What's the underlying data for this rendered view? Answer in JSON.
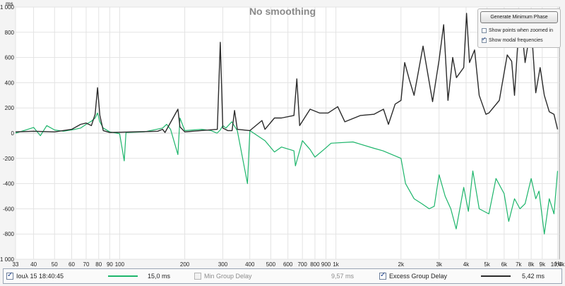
{
  "chart_data": {
    "type": "line",
    "title": "No smoothing",
    "x_unit": "Hz",
    "y_unit": "ms",
    "x_scale": "log",
    "xlim": [
      33,
      10800
    ],
    "ylim": [
      -1000,
      1000
    ],
    "grid": true,
    "x_ticks": [
      "33",
      "40",
      "50",
      "60",
      "70",
      "80",
      "90",
      "100",
      "200",
      "300",
      "400",
      "500",
      "600",
      "700",
      "800",
      "900",
      "1k",
      "2k",
      "3k",
      "4k",
      "5k",
      "6k",
      "7k",
      "8k",
      "9k",
      "10,6k"
    ],
    "x_tick_values": [
      33,
      40,
      50,
      60,
      70,
      80,
      90,
      100,
      200,
      300,
      400,
      500,
      600,
      700,
      800,
      900,
      1000,
      2000,
      3000,
      4000,
      5000,
      6000,
      7000,
      8000,
      9000,
      10600
    ],
    "y_ticks": [
      "1 000",
      "800",
      "600",
      "400",
      "200",
      "0",
      "-200",
      "-400",
      "-600",
      "-800",
      "-1 000"
    ],
    "y_tick_values": [
      1000,
      800,
      600,
      400,
      200,
      0,
      -200,
      -400,
      -600,
      -800,
      -1000
    ],
    "series": [
      {
        "label": "Iouλ 15 18:40:45",
        "color": "#1db56b",
        "points": [
          [
            33,
            0
          ],
          [
            36,
            20
          ],
          [
            40,
            45
          ],
          [
            43,
            -20
          ],
          [
            46,
            60
          ],
          [
            50,
            25
          ],
          [
            55,
            15
          ],
          [
            62,
            30
          ],
          [
            66,
            40
          ],
          [
            70,
            70
          ],
          [
            74,
            95
          ],
          [
            77,
            120
          ],
          [
            79,
            160
          ],
          [
            81,
            90
          ],
          [
            84,
            40
          ],
          [
            90,
            10
          ],
          [
            100,
            -5
          ],
          [
            105,
            -220
          ],
          [
            107,
            5
          ],
          [
            130,
            10
          ],
          [
            158,
            40
          ],
          [
            165,
            70
          ],
          [
            172,
            30
          ],
          [
            186,
            -170
          ],
          [
            190,
            120
          ],
          [
            200,
            20
          ],
          [
            240,
            30
          ],
          [
            265,
            20
          ],
          [
            282,
            0
          ],
          [
            292,
            25
          ],
          [
            300,
            60
          ],
          [
            310,
            40
          ],
          [
            330,
            90
          ],
          [
            350,
            20
          ],
          [
            390,
            -400
          ],
          [
            400,
            20
          ],
          [
            470,
            -60
          ],
          [
            520,
            -150
          ],
          [
            560,
            -110
          ],
          [
            640,
            -140
          ],
          [
            650,
            -260
          ],
          [
            700,
            -60
          ],
          [
            760,
            -130
          ],
          [
            800,
            -190
          ],
          [
            880,
            -130
          ],
          [
            950,
            -80
          ],
          [
            1200,
            -70
          ],
          [
            1500,
            -120
          ],
          [
            1650,
            -140
          ],
          [
            2000,
            -200
          ],
          [
            2100,
            -400
          ],
          [
            2300,
            -520
          ],
          [
            2500,
            -560
          ],
          [
            2700,
            -600
          ],
          [
            2850,
            -580
          ],
          [
            3000,
            -330
          ],
          [
            3200,
            -500
          ],
          [
            3400,
            -600
          ],
          [
            3600,
            -760
          ],
          [
            3900,
            -430
          ],
          [
            4100,
            -620
          ],
          [
            4300,
            -300
          ],
          [
            4600,
            -600
          ],
          [
            5100,
            -640
          ],
          [
            5500,
            -360
          ],
          [
            6000,
            -480
          ],
          [
            6300,
            -700
          ],
          [
            6700,
            -520
          ],
          [
            7100,
            -600
          ],
          [
            7500,
            -560
          ],
          [
            8000,
            -360
          ],
          [
            8400,
            -520
          ],
          [
            8700,
            -460
          ],
          [
            9200,
            -800
          ],
          [
            9700,
            -520
          ],
          [
            10200,
            -640
          ],
          [
            10600,
            -300
          ]
        ],
        "value": "15,0 ms"
      },
      {
        "label": "Min Group Delay",
        "color": "#a0a0a0",
        "points": [],
        "value": "9,57 ms"
      },
      {
        "label": "Excess Group Delay",
        "color": "#2b2b2b",
        "points": [
          [
            33,
            10
          ],
          [
            40,
            15
          ],
          [
            50,
            10
          ],
          [
            60,
            30
          ],
          [
            66,
            70
          ],
          [
            70,
            80
          ],
          [
            74,
            60
          ],
          [
            77,
            150
          ],
          [
            79,
            360
          ],
          [
            81,
            140
          ],
          [
            84,
            20
          ],
          [
            90,
            5
          ],
          [
            150,
            15
          ],
          [
            158,
            30
          ],
          [
            162,
            5
          ],
          [
            186,
            190
          ],
          [
            190,
            50
          ],
          [
            200,
            10
          ],
          [
            283,
            30
          ],
          [
            292,
            720
          ],
          [
            300,
            40
          ],
          [
            316,
            20
          ],
          [
            331,
            20
          ],
          [
            340,
            180
          ],
          [
            350,
            30
          ],
          [
            400,
            20
          ],
          [
            455,
            100
          ],
          [
            470,
            30
          ],
          [
            520,
            120
          ],
          [
            560,
            120
          ],
          [
            640,
            140
          ],
          [
            660,
            430
          ],
          [
            680,
            60
          ],
          [
            760,
            190
          ],
          [
            840,
            160
          ],
          [
            880,
            160
          ],
          [
            920,
            160
          ],
          [
            1020,
            210
          ],
          [
            1100,
            90
          ],
          [
            1300,
            140
          ],
          [
            1500,
            150
          ],
          [
            1660,
            190
          ],
          [
            1750,
            70
          ],
          [
            1880,
            230
          ],
          [
            2000,
            260
          ],
          [
            2080,
            560
          ],
          [
            2190,
            420
          ],
          [
            2300,
            300
          ],
          [
            2530,
            690
          ],
          [
            2800,
            250
          ],
          [
            3000,
            580
          ],
          [
            3150,
            860
          ],
          [
            3300,
            260
          ],
          [
            3470,
            600
          ],
          [
            3610,
            440
          ],
          [
            3900,
            520
          ],
          [
            4020,
            950
          ],
          [
            4150,
            560
          ],
          [
            4380,
            660
          ],
          [
            4600,
            300
          ],
          [
            4940,
            150
          ],
          [
            5100,
            160
          ],
          [
            5700,
            260
          ],
          [
            6200,
            620
          ],
          [
            6500,
            570
          ],
          [
            6700,
            300
          ],
          [
            7100,
            980
          ],
          [
            7500,
            560
          ],
          [
            8000,
            860
          ],
          [
            8400,
            320
          ],
          [
            8800,
            520
          ],
          [
            9200,
            300
          ],
          [
            9700,
            170
          ],
          [
            10200,
            150
          ],
          [
            10600,
            30
          ]
        ],
        "value": "5,42 ms"
      }
    ]
  },
  "panel": {
    "generate_button": "Generate Minimum Phase",
    "show_points_label": "Show points when zoomed in",
    "show_points_checked": false,
    "show_modal_label": "Show modal frequencies",
    "show_modal_checked": true
  },
  "legend": {
    "items": [
      {
        "label": "Iouλ 15 18:40:45",
        "checked": true,
        "enabled": true,
        "color": "#1db56b",
        "value": "15,0 ms"
      },
      {
        "label": "Min Group Delay",
        "checked": false,
        "enabled": false,
        "color": "#c8c8c8",
        "value": "9,57 ms"
      },
      {
        "label": "Excess Group Delay",
        "checked": true,
        "enabled": true,
        "color": "#2b2b2b",
        "value": "5,42 ms"
      }
    ]
  }
}
